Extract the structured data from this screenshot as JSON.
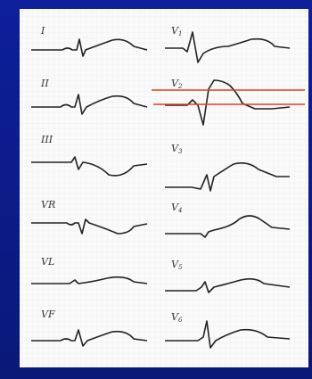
{
  "limb_leads": [
    "I",
    "II",
    "III",
    "VR",
    "VL",
    "VF"
  ],
  "chest_leads": [
    {
      "lead": "V",
      "sub": "1"
    },
    {
      "lead": "V",
      "sub": "2"
    },
    {
      "lead": "V",
      "sub": "3"
    },
    {
      "lead": "V",
      "sub": "4"
    },
    {
      "lead": "V",
      "sub": "5"
    },
    {
      "lead": "V",
      "sub": "6"
    }
  ]
}
